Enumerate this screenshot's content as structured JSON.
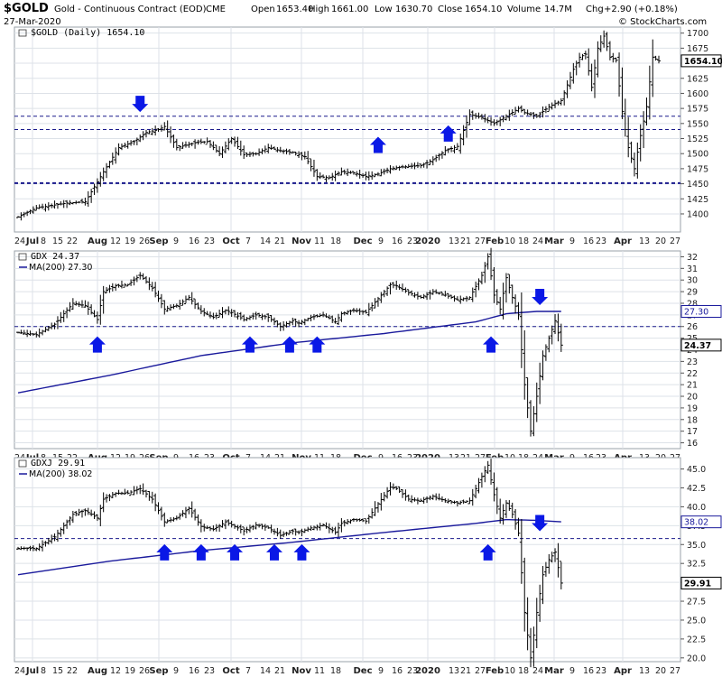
{
  "header": {
    "symbol": "$GOLD",
    "name": "Gold - Continuous Contract (EOD)",
    "exchange": "CME",
    "date": "27-Mar-2020",
    "open_label": "Open",
    "open": "1653.40",
    "high_label": "High",
    "high": "1661.00",
    "low_label": "Low",
    "low": "1630.70",
    "close_label": "Close",
    "close": "1654.10",
    "volume_label": "Volume",
    "volume": "14.7M",
    "chg_label": "Chg",
    "chg": "+2.90 (+0.18%)",
    "watermark": "© StockCharts.com"
  },
  "colors": {
    "price": "#000000",
    "ma": "#1a1a9c",
    "arrow": "#0a18e6",
    "dash": "#1a1a8c",
    "grid": "#dde2e8",
    "border": "#9aa0a8"
  },
  "chart_data": [
    {
      "type": "ohlc",
      "title": "$GOLD (Daily) 1654.10",
      "last_value": "1654.10",
      "ylim": [
        1370,
        1710
      ],
      "yticks": [
        1400,
        1425,
        1450,
        1475,
        1500,
        1525,
        1550,
        1575,
        1600,
        1625,
        1650,
        1675,
        1700
      ],
      "hlines": [
        {
          "y": 1562,
          "width": 1
        },
        {
          "y": 1540,
          "width": 1
        },
        {
          "y": 1451,
          "width": 2
        }
      ],
      "anchors": [
        [
          0,
          1395
        ],
        [
          6,
          1410
        ],
        [
          16,
          1418
        ],
        [
          22,
          1420
        ],
        [
          28,
          1470
        ],
        [
          33,
          1510
        ],
        [
          38,
          1520
        ],
        [
          42,
          1535
        ],
        [
          46,
          1540
        ],
        [
          48,
          1545
        ],
        [
          52,
          1510
        ],
        [
          58,
          1518
        ],
        [
          62,
          1520
        ],
        [
          66,
          1500
        ],
        [
          70,
          1525
        ],
        [
          74,
          1498
        ],
        [
          78,
          1500
        ],
        [
          82,
          1510
        ],
        [
          86,
          1505
        ],
        [
          90,
          1502
        ],
        [
          94,
          1495
        ],
        [
          98,
          1462
        ],
        [
          102,
          1460
        ],
        [
          106,
          1470
        ],
        [
          110,
          1468
        ],
        [
          114,
          1462
        ],
        [
          118,
          1466
        ],
        [
          122,
          1475
        ],
        [
          126,
          1478
        ],
        [
          132,
          1480
        ],
        [
          136,
          1490
        ],
        [
          140,
          1505
        ],
        [
          144,
          1512
        ],
        [
          148,
          1565
        ],
        [
          152,
          1560
        ],
        [
          156,
          1550
        ],
        [
          160,
          1562
        ],
        [
          164,
          1575
        ],
        [
          166,
          1568
        ],
        [
          170,
          1562
        ],
        [
          174,
          1578
        ],
        [
          178,
          1588
        ],
        [
          182,
          1640
        ],
        [
          184,
          1660
        ],
        [
          186,
          1665
        ],
        [
          188,
          1610
        ],
        [
          190,
          1675
        ],
        [
          192,
          1695
        ],
        [
          194,
          1660
        ],
        [
          196,
          1655
        ],
        [
          198,
          1570
        ],
        [
          200,
          1510
        ],
        [
          202,
          1475
        ],
        [
          204,
          1530
        ],
        [
          206,
          1578
        ],
        [
          208,
          1660
        ],
        [
          210,
          1654
        ]
      ],
      "arrows_up": [
        [
          118,
          1525
        ],
        [
          141,
          1544
        ]
      ],
      "arrows_down": [
        [
          40,
          1572
        ]
      ]
    },
    {
      "type": "ohlc",
      "title": "GDX 24.37",
      "legend": "MA(200) 27.30",
      "last_value": "24.37",
      "ma_value": "27.30",
      "ylim": [
        15.5,
        32.5
      ],
      "yticks": [
        16,
        17,
        18,
        19,
        20,
        21,
        22,
        23,
        24,
        25,
        26,
        27,
        28,
        29,
        30,
        31,
        32
      ],
      "hlines": [
        {
          "y": 26.0,
          "width": 1
        }
      ],
      "anchors": [
        [
          0,
          25.5
        ],
        [
          6,
          25.3
        ],
        [
          12,
          26.2
        ],
        [
          18,
          28.0
        ],
        [
          22,
          27.8
        ],
        [
          26,
          26.6
        ],
        [
          28,
          29.0
        ],
        [
          32,
          29.5
        ],
        [
          36,
          29.6
        ],
        [
          40,
          30.4
        ],
        [
          44,
          29.3
        ],
        [
          48,
          27.5
        ],
        [
          52,
          27.8
        ],
        [
          56,
          28.5
        ],
        [
          60,
          27.3
        ],
        [
          64,
          26.8
        ],
        [
          68,
          27.4
        ],
        [
          70,
          27.2
        ],
        [
          74,
          26.6
        ],
        [
          78,
          27.0
        ],
        [
          82,
          26.8
        ],
        [
          86,
          26.0
        ],
        [
          90,
          26.5
        ],
        [
          92,
          26.3
        ],
        [
          96,
          26.8
        ],
        [
          100,
          27.0
        ],
        [
          104,
          26.4
        ],
        [
          106,
          27.1
        ],
        [
          110,
          27.4
        ],
        [
          114,
          27.2
        ],
        [
          118,
          28.4
        ],
        [
          122,
          29.6
        ],
        [
          124,
          29.5
        ],
        [
          128,
          28.9
        ],
        [
          132,
          28.5
        ],
        [
          136,
          29.0
        ],
        [
          140,
          28.7
        ],
        [
          144,
          28.3
        ],
        [
          148,
          28.5
        ],
        [
          152,
          30.4
        ],
        [
          154,
          32.0
        ],
        [
          156,
          28.7
        ],
        [
          158,
          27.5
        ],
        [
          160,
          30.2
        ],
        [
          162,
          28.5
        ],
        [
          164,
          27.0
        ],
        [
          166,
          21.0
        ],
        [
          168,
          17.0
        ],
        [
          170,
          20.0
        ],
        [
          172,
          23.5
        ],
        [
          174,
          25.0
        ],
        [
          176,
          26.5
        ],
        [
          178,
          24.4
        ]
      ],
      "ma_anchors": [
        [
          0,
          20.3
        ],
        [
          30,
          21.8
        ],
        [
          60,
          23.5
        ],
        [
          90,
          24.6
        ],
        [
          120,
          25.4
        ],
        [
          150,
          26.4
        ],
        [
          160,
          27.1
        ],
        [
          170,
          27.3
        ],
        [
          178,
          27.3
        ]
      ],
      "arrows_up": [
        [
          26,
          25.0
        ],
        [
          76,
          25.0
        ],
        [
          89,
          25.0
        ],
        [
          98,
          25.0
        ],
        [
          155,
          25.0
        ]
      ],
      "arrows_down": [
        [
          171,
          28.0
        ]
      ]
    },
    {
      "type": "ohlc",
      "title": "GDXJ 29.91",
      "legend": "MA(200) 38.02",
      "last_value": "29.91",
      "ma_value": "38.02",
      "ylim": [
        19.5,
        46.5
      ],
      "yticks": [
        20.0,
        22.5,
        25.0,
        27.5,
        30.0,
        32.5,
        35.0,
        37.5,
        40.0,
        42.5,
        45.0
      ],
      "yticklabels": [
        "20.0",
        "22.5",
        "25.0",
        "27.5",
        "30.0",
        "32.5",
        "35.0",
        "37.5",
        "40.0",
        "42.5",
        "45.0"
      ],
      "hlines": [
        {
          "y": 35.8,
          "width": 1
        }
      ],
      "anchors": [
        [
          0,
          34.5
        ],
        [
          6,
          34.5
        ],
        [
          12,
          36.0
        ],
        [
          18,
          39.0
        ],
        [
          22,
          39.5
        ],
        [
          26,
          38.5
        ],
        [
          28,
          41.0
        ],
        [
          32,
          41.8
        ],
        [
          36,
          41.8
        ],
        [
          40,
          42.4
        ],
        [
          44,
          41.0
        ],
        [
          48,
          38.0
        ],
        [
          52,
          38.5
        ],
        [
          56,
          39.8
        ],
        [
          60,
          37.4
        ],
        [
          64,
          37.0
        ],
        [
          68,
          38.0
        ],
        [
          70,
          37.6
        ],
        [
          74,
          36.8
        ],
        [
          78,
          37.6
        ],
        [
          82,
          37.2
        ],
        [
          86,
          36.2
        ],
        [
          90,
          36.8
        ],
        [
          92,
          36.6
        ],
        [
          96,
          37.2
        ],
        [
          100,
          37.6
        ],
        [
          104,
          36.6
        ],
        [
          106,
          37.8
        ],
        [
          110,
          38.3
        ],
        [
          114,
          38.1
        ],
        [
          118,
          40.4
        ],
        [
          122,
          42.6
        ],
        [
          124,
          42.4
        ],
        [
          128,
          41.0
        ],
        [
          132,
          40.8
        ],
        [
          136,
          41.4
        ],
        [
          140,
          40.8
        ],
        [
          144,
          40.5
        ],
        [
          148,
          40.8
        ],
        [
          152,
          44.0
        ],
        [
          154,
          45.5
        ],
        [
          156,
          41.6
        ],
        [
          158,
          38.5
        ],
        [
          160,
          40.5
        ],
        [
          162,
          39.0
        ],
        [
          164,
          36.5
        ],
        [
          166,
          26.0
        ],
        [
          168,
          20.0
        ],
        [
          170,
          26.0
        ],
        [
          172,
          31.0
        ],
        [
          174,
          33.0
        ],
        [
          176,
          34.0
        ],
        [
          178,
          29.9
        ]
      ],
      "ma_anchors": [
        [
          0,
          31.0
        ],
        [
          30,
          32.8
        ],
        [
          60,
          34.2
        ],
        [
          90,
          35.3
        ],
        [
          120,
          36.6
        ],
        [
          150,
          37.8
        ],
        [
          160,
          38.3
        ],
        [
          170,
          38.2
        ],
        [
          178,
          38.0
        ]
      ],
      "arrows_up": [
        [
          48,
          34.8
        ],
        [
          60,
          34.8
        ],
        [
          71,
          34.8
        ],
        [
          84,
          34.8
        ],
        [
          93,
          34.8
        ],
        [
          154,
          34.8
        ]
      ],
      "arrows_down": [
        [
          171,
          37.0
        ]
      ]
    }
  ],
  "x_axis": {
    "labels": [
      "24",
      "Jul",
      "8",
      "15",
      "22",
      "Aug",
      "12",
      "19",
      "26",
      "Sep",
      "9",
      "16",
      "23",
      "Oct",
      "7",
      "14",
      "21",
      "Nov",
      "11",
      "18",
      "Dec",
      "9",
      "16",
      "23",
      "2020",
      "13",
      "21",
      "27",
      "Feb",
      "10",
      "18",
      "24",
      "Mar",
      "9",
      "16",
      "23",
      "Apr",
      "13",
      "20",
      "27"
    ],
    "bold": [
      "Jul",
      "Aug",
      "Sep",
      "Oct",
      "Nov",
      "Dec",
      "2020",
      "Feb",
      "Mar",
      "Apr"
    ]
  }
}
